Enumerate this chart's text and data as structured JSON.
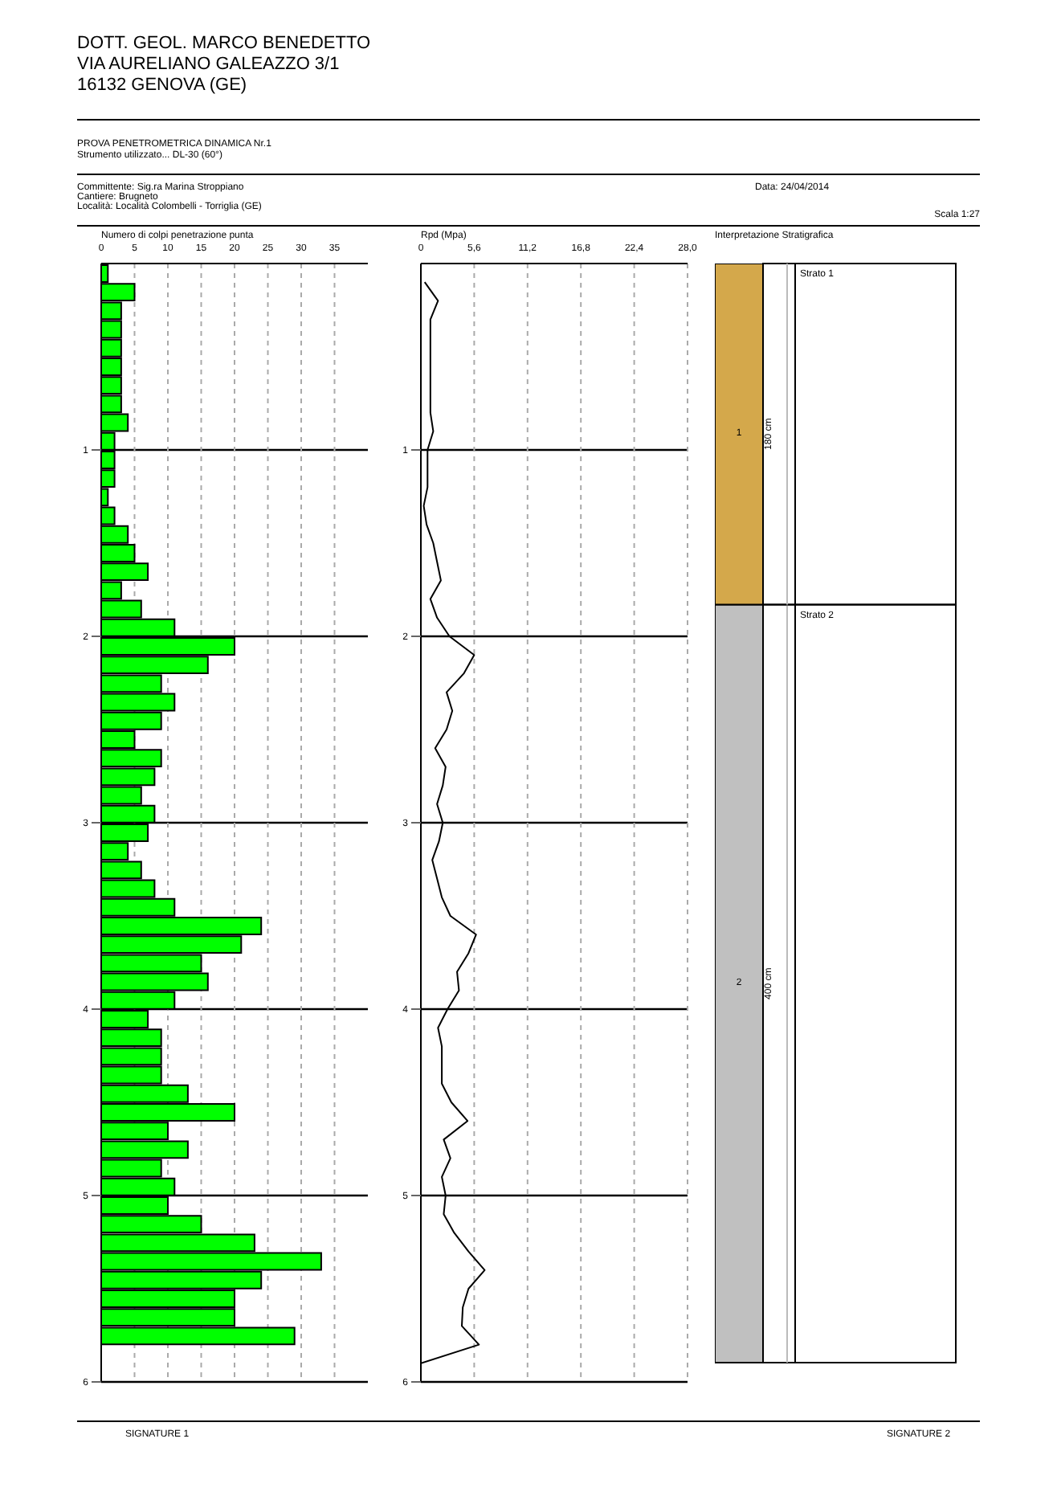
{
  "chart_data": [
    {
      "type": "bar",
      "orientation": "horizontal",
      "title": "PROVA PENETROMETRICA DINAMICA Nr.1",
      "subtitle": "Strumento utilizzato... DL-30 (60°)",
      "xlabel": "Numero di colpi penetrazione punta",
      "annotations": [
        "DOTT. GEOL. MARCO BENEDETTO",
        "VIA AURELIANO GALEAZZO 3/1",
        "16132 GENOVA (GE)",
        "Committente: Sig.ra Marina Stroppiano",
        "Cantiere: Brugneto",
        "Località: Località Colombelli - Torriglia (GE)",
        "Data: 24/04/2014",
        "Scala 1:27",
        "SIGNATURE 1",
        "SIGNATURE 2"
      ],
      "x": [
        0.05,
        0.15,
        0.25,
        0.35,
        0.45,
        0.55,
        0.65,
        0.75,
        0.85,
        0.95,
        1.05,
        1.15,
        1.25,
        1.35,
        1.45,
        1.55,
        1.65,
        1.75,
        1.85,
        1.95,
        2.05,
        2.15,
        2.25,
        2.35,
        2.45,
        2.55,
        2.65,
        2.75,
        2.85,
        2.95,
        3.05,
        3.15,
        3.25,
        3.35,
        3.45,
        3.55,
        3.65,
        3.75,
        3.85,
        3.95,
        4.05,
        4.15,
        4.25,
        4.35,
        4.45,
        4.55,
        4.65,
        4.75,
        4.85,
        4.95,
        5.05,
        5.15,
        5.25,
        5.35,
        5.45,
        5.55,
        5.65,
        5.75
      ],
      "values": [
        1,
        5,
        3,
        3,
        3,
        3,
        3,
        3,
        4,
        2,
        2,
        2,
        1,
        2,
        4,
        5,
        7,
        3,
        6,
        11,
        20,
        16,
        9,
        11,
        9,
        5,
        9,
        8,
        6,
        8,
        7,
        4,
        6,
        8,
        11,
        24,
        21,
        15,
        16,
        11,
        7,
        9,
        9,
        9,
        13,
        20,
        10,
        13,
        9,
        11,
        10,
        15,
        23,
        33,
        24,
        20,
        20,
        29
      ],
      "color": "#00ff00",
      "xlim": [
        0,
        40
      ],
      "xticks": [
        0,
        5,
        10,
        15,
        20,
        25,
        30,
        35
      ],
      "ylim": [
        6,
        0
      ],
      "yticks": [
        1,
        2,
        3,
        4,
        5,
        6
      ],
      "grid": true
    },
    {
      "type": "line",
      "orientation": "horizontal",
      "xlabel": "Rpd (Mpa)",
      "x": [
        0.1,
        0.2,
        0.3,
        0.4,
        0.5,
        0.6,
        0.7,
        0.8,
        0.9,
        1.0,
        1.1,
        1.2,
        1.3,
        1.4,
        1.5,
        1.6,
        1.7,
        1.8,
        1.9,
        2.0,
        2.1,
        2.2,
        2.3,
        2.4,
        2.5,
        2.6,
        2.7,
        2.8,
        2.9,
        3.0,
        3.1,
        3.2,
        3.3,
        3.4,
        3.5,
        3.6,
        3.7,
        3.8,
        3.9,
        4.0,
        4.1,
        4.2,
        4.3,
        4.4,
        4.5,
        4.6,
        4.7,
        4.8,
        4.9,
        5.0,
        5.1,
        5.2,
        5.3,
        5.4,
        5.5,
        5.6,
        5.7,
        5.8,
        5.9
      ],
      "values": [
        0.4,
        1.8,
        1.0,
        1.0,
        1.0,
        1.0,
        1.0,
        1.0,
        1.3,
        0.7,
        0.7,
        0.7,
        0.3,
        0.6,
        1.3,
        1.7,
        2.1,
        1.0,
        1.7,
        3.0,
        5.6,
        4.5,
        2.7,
        3.3,
        2.7,
        1.5,
        2.6,
        2.3,
        1.7,
        2.3,
        1.9,
        1.2,
        1.7,
        2.2,
        3.1,
        5.8,
        5.0,
        3.8,
        4.0,
        2.8,
        1.8,
        2.2,
        2.2,
        2.2,
        3.2,
        4.9,
        2.4,
        3.1,
        2.2,
        2.6,
        2.4,
        3.5,
        5.0,
        6.7,
        5.0,
        4.4,
        4.3,
        6.1,
        0
      ],
      "color": "#000000",
      "marker": "none",
      "line_style": "solid",
      "xlim": [
        0,
        28
      ],
      "xticks": [
        0,
        {
          "value": 5.6,
          "label": "5,6"
        },
        {
          "value": 11.2,
          "label": "11,2"
        },
        {
          "value": 16.8,
          "label": "16,8"
        },
        {
          "value": 22.4,
          "label": "22,4"
        },
        {
          "value": 28,
          "label": "28,0"
        }
      ],
      "ylim": [
        6,
        0
      ],
      "yticks": [
        1,
        2,
        3,
        4,
        5,
        6
      ],
      "grid": true
    },
    {
      "type": "bar",
      "stacked": true,
      "title": "Interpretazione Stratigrafica",
      "categories": [
        null
      ],
      "series": [
        {
          "name": "Strato 2",
          "color": "#c0c0c0",
          "values": [
            400
          ],
          "value_labels": [
            "400 cm"
          ]
        },
        {
          "name": "Strato 1",
          "color": "#d4a84b",
          "values": [
            180
          ],
          "value_labels": [
            "180 cm"
          ]
        }
      ],
      "annotations": [
        "1",
        "2"
      ]
    }
  ]
}
